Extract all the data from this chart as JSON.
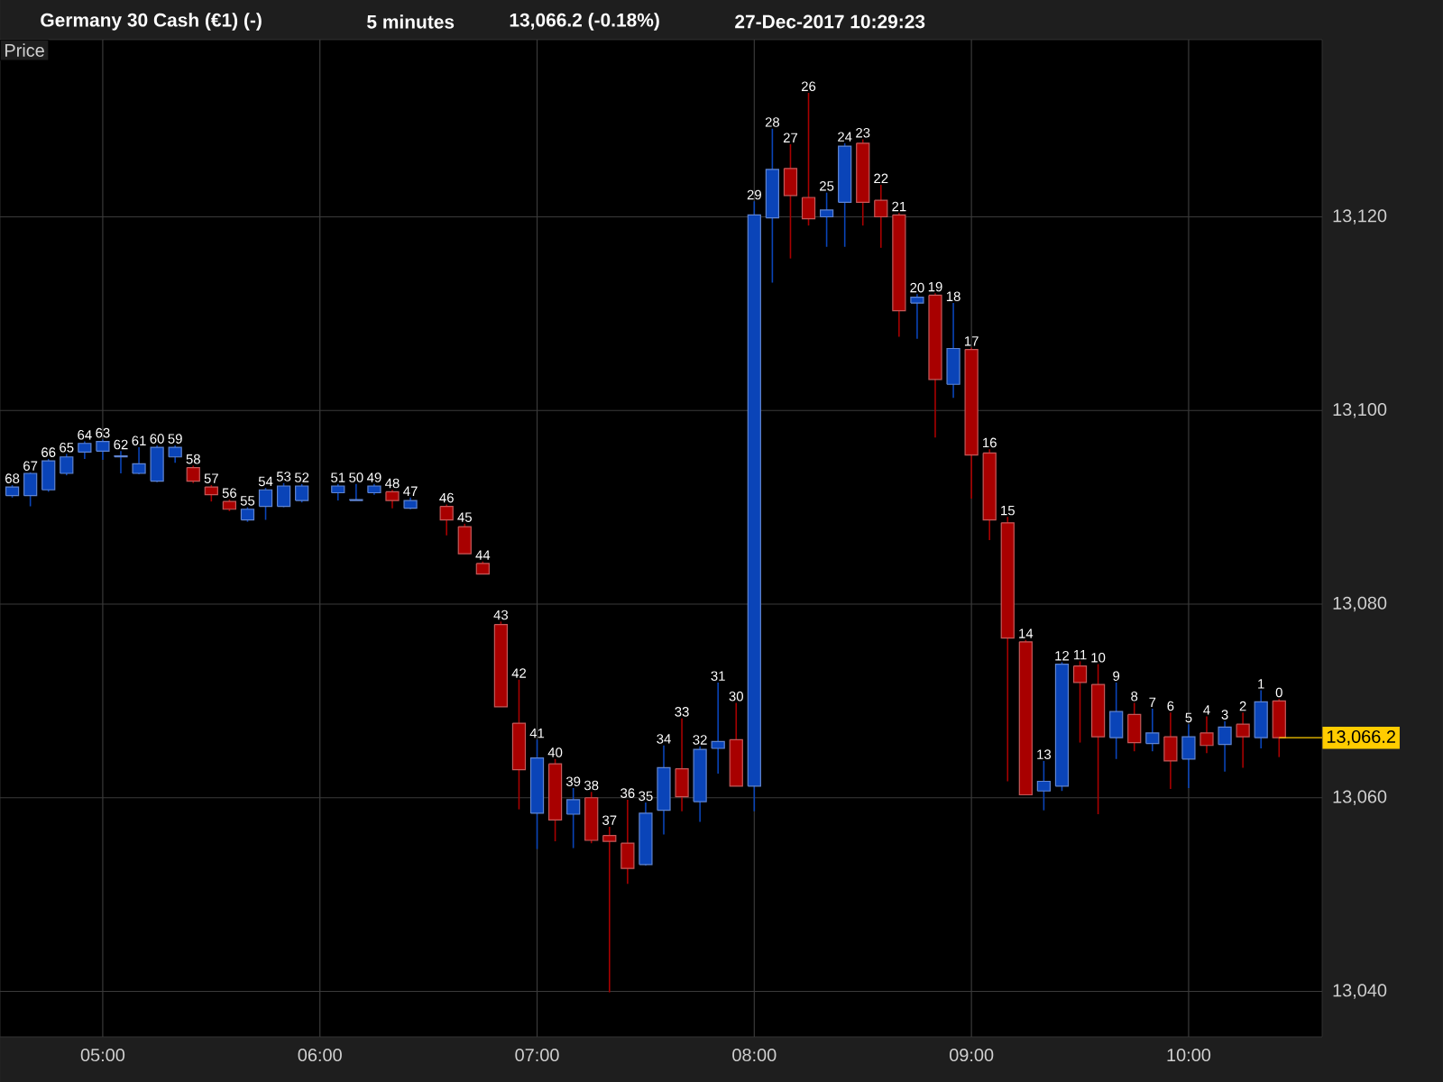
{
  "chart_data": {
    "type": "candlestick",
    "title": "Germany 30 Cash (€1) (-)",
    "ylabel": "Price",
    "x": [
      4.5833,
      4.6667,
      4.75,
      4.8333,
      4.9167,
      5,
      5.0833,
      5.1667,
      5.25,
      5.3333,
      5.4167,
      5.5,
      5.5833,
      5.6667,
      5.75,
      5.8333,
      5.9167,
      6.0833,
      6.1667,
      6.25,
      6.3333,
      6.4167,
      6.5833,
      6.6667,
      6.75,
      6.8333,
      6.9167,
      7,
      7.0833,
      7.1667,
      7.25,
      7.3333,
      7.4167,
      7.5,
      7.5833,
      7.6667,
      7.75,
      7.8333,
      7.9167,
      8,
      8.0833,
      8.1667,
      8.25,
      8.3333,
      8.4167,
      8.5,
      8.5833,
      8.6667,
      8.75,
      8.8333,
      8.9167,
      9,
      9.0833,
      9.1667,
      9.25,
      9.3333,
      9.4167,
      9.5,
      9.5833,
      9.6667,
      9.75,
      9.8333,
      9.9167,
      10,
      10.0833,
      10.1667,
      10.25,
      10.3333,
      10.4167
    ],
    "ohlc": [
      [
        13091.2,
        13092.3,
        13091.0,
        13092.1
      ],
      [
        13091.2,
        13093.6,
        13090.1,
        13093.5
      ],
      [
        13091.8,
        13095.0,
        13091.6,
        13094.8
      ],
      [
        13093.5,
        13095.5,
        13093.3,
        13095.2
      ],
      [
        13095.7,
        13096.8,
        13095.0,
        13096.6
      ],
      [
        13095.8,
        13097.0,
        13094.9,
        13096.8
      ],
      [
        13095.2,
        13095.8,
        13093.5,
        13095.3
      ],
      [
        13093.5,
        13096.2,
        13093.4,
        13094.5
      ],
      [
        13092.7,
        13096.4,
        13092.6,
        13096.2
      ],
      [
        13095.2,
        13096.4,
        13094.6,
        13096.2
      ],
      [
        13094.1,
        13094.3,
        13092.5,
        13092.7
      ],
      [
        13092.1,
        13092.3,
        13090.6,
        13091.3
      ],
      [
        13090.6,
        13090.8,
        13089.6,
        13089.8
      ],
      [
        13088.7,
        13090.0,
        13088.5,
        13089.8
      ],
      [
        13090.1,
        13092.0,
        13088.7,
        13091.8
      ],
      [
        13090.1,
        13092.5,
        13090.0,
        13092.2
      ],
      [
        13090.7,
        13092.4,
        13090.5,
        13092.2
      ],
      [
        13091.5,
        13092.4,
        13090.7,
        13092.2
      ],
      [
        13090.7,
        13092.4,
        13090.7,
        13090.8
      ],
      [
        13091.5,
        13092.4,
        13091.3,
        13092.2
      ],
      [
        13091.6,
        13091.8,
        13089.9,
        13090.7
      ],
      [
        13089.9,
        13091.0,
        13089.8,
        13090.7
      ],
      [
        13090.1,
        13090.3,
        13087.1,
        13088.7
      ],
      [
        13088.0,
        13088.3,
        13085.2,
        13085.2
      ],
      [
        13084.2,
        13084.4,
        13083.1,
        13083.1
      ],
      [
        13077.9,
        13078.2,
        13069.4,
        13069.4
      ],
      [
        13067.7,
        13072.2,
        13058.8,
        13062.9
      ],
      [
        13058.4,
        13066.0,
        13054.7,
        13064.1
      ],
      [
        13063.5,
        13064.0,
        13055.5,
        13057.7
      ],
      [
        13058.3,
        13061.0,
        13054.8,
        13059.8
      ],
      [
        13060.0,
        13060.6,
        13055.3,
        13055.6
      ],
      [
        13056.1,
        13057.0,
        13039.9,
        13055.5
      ],
      [
        13055.3,
        13059.8,
        13051.1,
        13052.7
      ],
      [
        13053.1,
        13059.5,
        13053.0,
        13058.4
      ],
      [
        13058.7,
        13065.4,
        13056.2,
        13063.1
      ],
      [
        13063.0,
        13068.2,
        13058.6,
        13060.1
      ],
      [
        13059.6,
        13065.3,
        13057.5,
        13065.0
      ],
      [
        13065.1,
        13071.9,
        13062.5,
        13065.8
      ],
      [
        13066.0,
        13069.8,
        13061.2,
        13061.2
      ],
      [
        13061.2,
        13121.6,
        13058.6,
        13120.2
      ],
      [
        13119.9,
        13129.1,
        13113.2,
        13124.9
      ],
      [
        13125.0,
        13127.5,
        13115.7,
        13122.2
      ],
      [
        13122.0,
        13132.8,
        13119.1,
        13119.8
      ],
      [
        13120.0,
        13122.5,
        13116.9,
        13120.7
      ],
      [
        13121.5,
        13127.6,
        13116.9,
        13127.3
      ],
      [
        13127.6,
        13128.0,
        13119.1,
        13121.5
      ],
      [
        13121.7,
        13123.3,
        13116.8,
        13120.0
      ],
      [
        13120.2,
        13120.4,
        13107.6,
        13110.3
      ],
      [
        13111.1,
        13112.0,
        13107.4,
        13111.7
      ],
      [
        13111.9,
        13112.1,
        13097.2,
        13103.2
      ],
      [
        13102.7,
        13111.1,
        13101.3,
        13106.4
      ],
      [
        13106.3,
        13106.5,
        13090.9,
        13095.4
      ],
      [
        13095.6,
        13096.0,
        13086.6,
        13088.7
      ],
      [
        13088.4,
        13089.0,
        13061.7,
        13076.5
      ],
      [
        13076.1,
        13076.3,
        13060.3,
        13060.3
      ],
      [
        13060.7,
        13063.8,
        13058.7,
        13061.7
      ],
      [
        13061.2,
        13074.0,
        13060.7,
        13073.8
      ],
      [
        13073.6,
        13074.1,
        13065.7,
        13071.9
      ],
      [
        13071.7,
        13073.8,
        13058.3,
        13066.3
      ],
      [
        13066.2,
        13071.9,
        13064.0,
        13068.9
      ],
      [
        13068.6,
        13069.8,
        13064.8,
        13065.7
      ],
      [
        13065.6,
        13069.2,
        13064.8,
        13066.7
      ],
      [
        13066.3,
        13068.8,
        13060.9,
        13063.8
      ],
      [
        13064.0,
        13067.6,
        13061.0,
        13066.3
      ],
      [
        13066.7,
        13068.4,
        13064.6,
        13065.4
      ],
      [
        13065.5,
        13067.9,
        13062.7,
        13067.3
      ],
      [
        13067.6,
        13068.8,
        13063.1,
        13066.3
      ],
      [
        13066.2,
        13071.1,
        13065.1,
        13069.9
      ],
      [
        13070.0,
        13070.2,
        13064.2,
        13066.2
      ]
    ],
    "colors": [
      "#0a44b8",
      "#0a44b8",
      "#0a44b8",
      "#0a44b8",
      "#0a44b8",
      "#0a44b8",
      "#0a44b8",
      "#0a44b8",
      "#0a44b8",
      "#0a44b8",
      "#a80000",
      "#a80000",
      "#a80000",
      "#0a44b8",
      "#0a44b8",
      "#0a44b8",
      "#0a44b8",
      "#0a44b8",
      "#0a44b8",
      "#0a44b8",
      "#a80000",
      "#0a44b8",
      "#a80000",
      "#a80000",
      "#a80000",
      "#a80000",
      "#a80000",
      "#0a44b8",
      "#a80000",
      "#0a44b8",
      "#a80000",
      "#a80000",
      "#a80000",
      "#0a44b8",
      "#0a44b8",
      "#a80000",
      "#0a44b8",
      "#0a44b8",
      "#a80000",
      "#0a44b8",
      "#0a44b8",
      "#a80000",
      "#a80000",
      "#0a44b8",
      "#0a44b8",
      "#a80000",
      "#a80000",
      "#a80000",
      "#0a44b8",
      "#a80000",
      "#0a44b8",
      "#a80000",
      "#a80000",
      "#a80000",
      "#a80000",
      "#0a44b8",
      "#0a44b8",
      "#a80000",
      "#a80000",
      "#0a44b8",
      "#a80000",
      "#0a44b8",
      "#a80000",
      "#0a44b8",
      "#a80000",
      "#0a44b8",
      "#a80000",
      "#0a44b8",
      "#a80000"
    ],
    "xlim": [
      4.527,
      10.615
    ],
    "ylim": [
      13035.3,
      13138.3
    ],
    "xticks": [
      {
        "value": 5,
        "label": "05:00"
      },
      {
        "value": 6,
        "label": "06:00"
      },
      {
        "value": 7,
        "label": "07:00"
      },
      {
        "value": 8,
        "label": "08:00"
      },
      {
        "value": 9,
        "label": "09:00"
      },
      {
        "value": 10,
        "label": "10:00"
      }
    ],
    "yticks": [
      {
        "value": 13040,
        "label": "13,040"
      },
      {
        "value": 13060,
        "label": "13,060"
      },
      {
        "value": 13080,
        "label": "13,080"
      },
      {
        "value": 13100,
        "label": "13,100"
      },
      {
        "value": 13120,
        "label": "13,120"
      }
    ],
    "grid": true,
    "ref_lines": [
      {
        "axis": "y",
        "value": 13066.2,
        "label": "13,066.2",
        "color": "#ffcc00"
      }
    ],
    "annotations": [
      "5 minutes",
      "13,066.2 (-0.18%)",
      "27-Dec-2017 10:29:23",
      {
        "text": "68",
        "x": 4.5833,
        "y": 13092.3
      },
      {
        "text": "67",
        "x": 4.6667,
        "y": 13093.6
      },
      {
        "text": "66",
        "x": 4.75,
        "y": 13095.0
      },
      {
        "text": "65",
        "x": 4.8333,
        "y": 13095.5
      },
      {
        "text": "64",
        "x": 4.9167,
        "y": 13096.8
      },
      {
        "text": "63",
        "x": 5,
        "y": 13097.0
      },
      {
        "text": "62",
        "x": 5.0833,
        "y": 13095.8
      },
      {
        "text": "61",
        "x": 5.1667,
        "y": 13096.2
      },
      {
        "text": "60",
        "x": 5.25,
        "y": 13096.4
      },
      {
        "text": "59",
        "x": 5.3333,
        "y": 13096.4
      },
      {
        "text": "58",
        "x": 5.4167,
        "y": 13094.3
      },
      {
        "text": "57",
        "x": 5.5,
        "y": 13092.3
      },
      {
        "text": "56",
        "x": 5.5833,
        "y": 13090.8
      },
      {
        "text": "55",
        "x": 5.6667,
        "y": 13090.0
      },
      {
        "text": "54",
        "x": 5.75,
        "y": 13092.0
      },
      {
        "text": "53",
        "x": 5.8333,
        "y": 13092.5
      },
      {
        "text": "52",
        "x": 5.9167,
        "y": 13092.4
      },
      {
        "text": "51",
        "x": 6.0833,
        "y": 13092.4
      },
      {
        "text": "50",
        "x": 6.1667,
        "y": 13092.4
      },
      {
        "text": "49",
        "x": 6.25,
        "y": 13092.4
      },
      {
        "text": "48",
        "x": 6.3333,
        "y": 13091.8
      },
      {
        "text": "47",
        "x": 6.4167,
        "y": 13091.0
      },
      {
        "text": "46",
        "x": 6.5833,
        "y": 13090.3
      },
      {
        "text": "45",
        "x": 6.6667,
        "y": 13088.3
      },
      {
        "text": "44",
        "x": 6.75,
        "y": 13084.4
      },
      {
        "text": "43",
        "x": 6.8333,
        "y": 13078.2
      },
      {
        "text": "42",
        "x": 6.9167,
        "y": 13072.2
      },
      {
        "text": "41",
        "x": 7,
        "y": 13066.0
      },
      {
        "text": "40",
        "x": 7.0833,
        "y": 13064.0
      },
      {
        "text": "39",
        "x": 7.1667,
        "y": 13061.0
      },
      {
        "text": "38",
        "x": 7.25,
        "y": 13060.6
      },
      {
        "text": "37",
        "x": 7.3333,
        "y": 13057.0
      },
      {
        "text": "36",
        "x": 7.4167,
        "y": 13059.8
      },
      {
        "text": "35",
        "x": 7.5,
        "y": 13059.5
      },
      {
        "text": "34",
        "x": 7.5833,
        "y": 13065.4
      },
      {
        "text": "33",
        "x": 7.6667,
        "y": 13068.2
      },
      {
        "text": "32",
        "x": 7.75,
        "y": 13065.3
      },
      {
        "text": "31",
        "x": 7.8333,
        "y": 13071.9
      },
      {
        "text": "30",
        "x": 7.9167,
        "y": 13069.8
      },
      {
        "text": "29",
        "x": 8,
        "y": 13121.6
      },
      {
        "text": "28",
        "x": 8.0833,
        "y": 13129.1
      },
      {
        "text": "27",
        "x": 8.1667,
        "y": 13127.5
      },
      {
        "text": "26",
        "x": 8.25,
        "y": 13132.8
      },
      {
        "text": "25",
        "x": 8.3333,
        "y": 13122.5
      },
      {
        "text": "24",
        "x": 8.4167,
        "y": 13127.6
      },
      {
        "text": "23",
        "x": 8.5,
        "y": 13128.0
      },
      {
        "text": "22",
        "x": 8.5833,
        "y": 13123.3
      },
      {
        "text": "21",
        "x": 8.6667,
        "y": 13120.4
      },
      {
        "text": "20",
        "x": 8.75,
        "y": 13112.0
      },
      {
        "text": "19",
        "x": 8.8333,
        "y": 13112.1
      },
      {
        "text": "18",
        "x": 8.9167,
        "y": 13111.1
      },
      {
        "text": "17",
        "x": 9,
        "y": 13106.5
      },
      {
        "text": "16",
        "x": 9.0833,
        "y": 13096.0
      },
      {
        "text": "15",
        "x": 9.1667,
        "y": 13089.0
      },
      {
        "text": "14",
        "x": 9.25,
        "y": 13076.3
      },
      {
        "text": "13",
        "x": 9.3333,
        "y": 13063.8
      },
      {
        "text": "12",
        "x": 9.4167,
        "y": 13074.0
      },
      {
        "text": "11",
        "x": 9.5,
        "y": 13074.1
      },
      {
        "text": "10",
        "x": 9.5833,
        "y": 13073.8
      },
      {
        "text": "9",
        "x": 9.6667,
        "y": 13071.9
      },
      {
        "text": "8",
        "x": 9.75,
        "y": 13069.8
      },
      {
        "text": "7",
        "x": 9.8333,
        "y": 13069.2
      },
      {
        "text": "6",
        "x": 9.9167,
        "y": 13068.8
      },
      {
        "text": "5",
        "x": 10,
        "y": 13067.6
      },
      {
        "text": "4",
        "x": 10.0833,
        "y": 13068.4
      },
      {
        "text": "3",
        "x": 10.1667,
        "y": 13067.9
      },
      {
        "text": "2",
        "x": 10.25,
        "y": 13068.8
      },
      {
        "text": "1",
        "x": 10.3333,
        "y": 13071.1
      },
      {
        "text": "0",
        "x": 10.4167,
        "y": 13070.2
      }
    ]
  }
}
